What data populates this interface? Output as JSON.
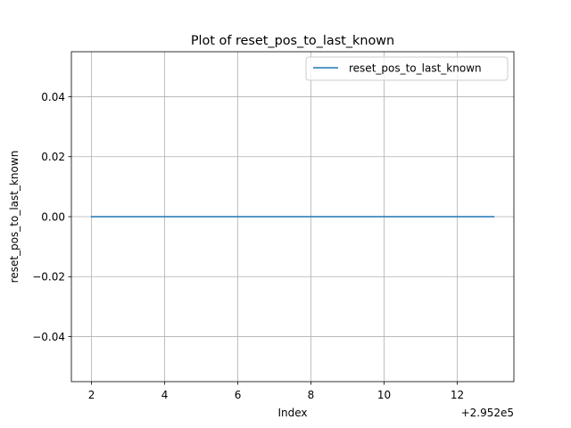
{
  "chart_data": {
    "type": "line",
    "title": "Plot of reset_pos_to_last_known",
    "xlabel": "Index",
    "ylabel": "reset_pos_to_last_known",
    "x_offset_text": "+2.952e5",
    "xlim": [
      1.45,
      13.55
    ],
    "ylim": [
      -0.055,
      0.055
    ],
    "x_ticks": [
      2,
      4,
      6,
      8,
      10,
      12
    ],
    "x_tick_labels": [
      "2",
      "4",
      "6",
      "8",
      "10",
      "12"
    ],
    "y_ticks": [
      -0.04,
      -0.02,
      0.0,
      0.02,
      0.04
    ],
    "y_tick_labels": [
      "−0.04",
      "−0.02",
      "0.00",
      "0.02",
      "0.04"
    ],
    "grid": true,
    "legend_position": "top-right",
    "series": [
      {
        "name": "reset_pos_to_last_known",
        "color": "#1f77b4",
        "x": [
          2,
          3,
          4,
          5,
          6,
          7,
          8,
          9,
          10,
          11,
          12,
          13
        ],
        "y": [
          0,
          0,
          0,
          0,
          0,
          0,
          0,
          0,
          0,
          0,
          0,
          0
        ]
      }
    ]
  }
}
